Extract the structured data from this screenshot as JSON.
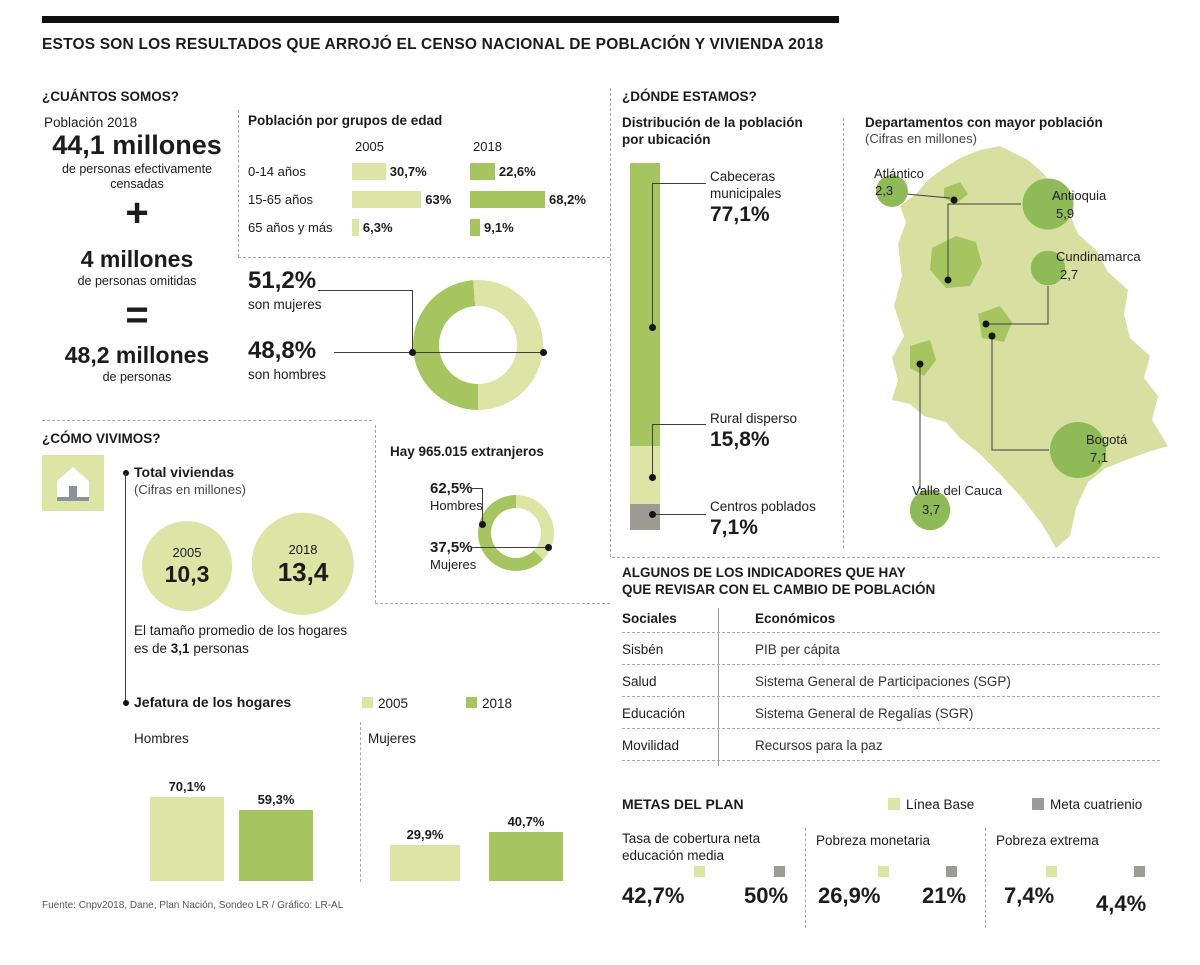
{
  "colors": {
    "light_green": "#dce4a6",
    "medium_green": "#a6c561",
    "bubble_green": "#8fba58",
    "map_green": "#d7e0a0",
    "gray": "#9c9c94",
    "ink": "#1c1c1c"
  },
  "header": {
    "title": "ESTOS SON LOS RESULTADOS QUE ARROJÓ EL CENSO NACIONAL DE POBLACIÓN Y VIVIENDA 2018"
  },
  "cuantos": {
    "section_title": "¿CUÁNTOS SOMOS?",
    "poblacion_label": "Población 2018",
    "censados_value": "44,1 millones",
    "censados_caption": "de personas efectivamente censadas",
    "plus": "+",
    "omitidas_value": "4 millones",
    "omitidas_caption": "de personas omitidas",
    "equals": "=",
    "total_value": "48,2 millones",
    "total_caption": "de personas"
  },
  "edad": {
    "title": "Población por grupos de edad",
    "col_2005": "2005",
    "col_2018": "2018",
    "rows": [
      {
        "label": "0-14 años",
        "v2005": "30,7%",
        "v2018": "22,6%"
      },
      {
        "label": "15-65 años",
        "v2005": "63%",
        "v2018": "68,2%"
      },
      {
        "label": "65 años y más",
        "v2005": "6,3%",
        "v2018": "9,1%"
      }
    ]
  },
  "sexo": {
    "mujeres_value": "51,2%",
    "mujeres_label": "son mujeres",
    "hombres_value": "48,8%",
    "hombres_label": "son hombres"
  },
  "extranjeros": {
    "title": "Hay 965.015 extranjeros",
    "hombres_value": "62,5%",
    "hombres_label": "Hombres",
    "mujeres_value": "37,5%",
    "mujeres_label": "Mujeres"
  },
  "vivimos": {
    "section_title": "¿CÓMO VIVIMOS?",
    "viviendas_title": "Total viviendas",
    "viviendas_caption": "(Cifras en millones)",
    "c2005_year": "2005",
    "c2005_value": "10,3",
    "c2018_year": "2018",
    "c2018_value": "13,4",
    "hogares_line1": "El tamaño promedio de los hogares",
    "hogares_pre": "es de ",
    "hogares_bold": "3,1",
    "hogares_post": " personas",
    "jefatura_title": "Jefatura de los hogares",
    "legend_2005": "2005",
    "legend_2018": "2018",
    "hombres_label": "Hombres",
    "mujeres_label": "Mujeres",
    "bars": {
      "h2005": "70,1%",
      "h2018": "59,3%",
      "m2005": "29,9%",
      "m2018": "40,7%"
    }
  },
  "fuente": "Fuente: Cnpv2018, Dane, Plan Nación, Sondeo LR / Gráfico: LR-AL",
  "donde": {
    "section_title": "¿DÓNDE ESTAMOS?",
    "dist_title": "Distribución de la población por ubicación",
    "items": [
      {
        "label": "Cabeceras municipales",
        "value": "77,1%"
      },
      {
        "label": "Rural disperso",
        "value": "15,8%"
      },
      {
        "label": "Centros poblados",
        "value": "7,1%"
      }
    ],
    "map_title": "Departamentos con mayor población",
    "map_subtitle": "(Cifras en millones)",
    "departamentos": [
      {
        "name": "Atlántico",
        "value": "2,3"
      },
      {
        "name": "Antioquia",
        "value": "5,9"
      },
      {
        "name": "Cundinamarca",
        "value": "2,7"
      },
      {
        "name": "Bogotá",
        "value": "7,1"
      },
      {
        "name": "Valle del Cauca",
        "value": "3,7"
      }
    ]
  },
  "indicadores": {
    "title_l1": "ALGUNOS DE LOS INDICADORES QUE HAY",
    "title_l2": "QUE REVISAR CON EL CAMBIO DE POBLACIÓN",
    "col1": "Sociales",
    "col2": "Económicos",
    "rows": [
      {
        "social": "Sisbén",
        "economico": "PIB per cápita"
      },
      {
        "social": "Salud",
        "economico": "Sistema General de Participaciones (SGP)"
      },
      {
        "social": "Educación",
        "economico": "Sistema General de Regalías (SGR)"
      },
      {
        "social": "Movilidad",
        "economico": "Recursos para la paz"
      }
    ]
  },
  "metas": {
    "title": "METAS DEL PLAN",
    "legend_base": "Línea Base",
    "legend_meta": "Meta cuatrienio",
    "groups": [
      {
        "label": "Tasa de cobertura neta educación media",
        "base": "42,7%",
        "meta": "50%"
      },
      {
        "label": "Pobreza monetaria",
        "base": "26,9%",
        "meta": "21%"
      },
      {
        "label": "Pobreza extrema",
        "base": "7,4%",
        "meta": "4,4%"
      }
    ]
  },
  "chart_data": [
    {
      "type": "bar",
      "title": "Población por grupos de edad",
      "categories": [
        "0-14 años",
        "15-65 años",
        "65 años y más"
      ],
      "series": [
        {
          "name": "2005",
          "values": [
            30.7,
            63,
            6.3
          ]
        },
        {
          "name": "2018",
          "values": [
            22.6,
            68.2,
            9.1
          ]
        }
      ],
      "unit": "%"
    },
    {
      "type": "pie",
      "title": "Distribución por sexo",
      "labels": [
        "son mujeres",
        "son hombres"
      ],
      "values": [
        51.2,
        48.8
      ],
      "unit": "%"
    },
    {
      "type": "pie",
      "title": "Hay 965.015 extranjeros",
      "labels": [
        "Hombres",
        "Mujeres"
      ],
      "values": [
        62.5,
        37.5
      ],
      "unit": "%"
    },
    {
      "type": "bar",
      "title": "Total viviendas (Cifras en millones)",
      "categories": [
        "2005",
        "2018"
      ],
      "values": [
        10.3,
        13.4
      ]
    },
    {
      "type": "bar",
      "title": "Jefatura de los hogares",
      "categories": [
        "Hombres",
        "Mujeres"
      ],
      "series": [
        {
          "name": "2005",
          "values": [
            70.1,
            29.9
          ]
        },
        {
          "name": "2018",
          "values": [
            59.3,
            40.7
          ]
        }
      ],
      "unit": "%"
    },
    {
      "type": "bar",
      "title": "Distribución de la población por ubicación",
      "categories": [
        "Cabeceras municipales",
        "Rural disperso",
        "Centros poblados"
      ],
      "values": [
        77.1,
        15.8,
        7.1
      ],
      "unit": "%"
    },
    {
      "type": "scatter",
      "title": "Departamentos con mayor población (Cifras en millones)",
      "labels": [
        "Atlántico",
        "Antioquia",
        "Cundinamarca",
        "Bogotá",
        "Valle del Cauca"
      ],
      "values": [
        2.3,
        5.9,
        2.7,
        7.1,
        3.7
      ]
    },
    {
      "type": "bar",
      "title": "Metas del plan",
      "categories": [
        "Tasa de cobertura neta educación media",
        "Pobreza monetaria",
        "Pobreza extrema"
      ],
      "series": [
        {
          "name": "Línea Base",
          "values": [
            42.7,
            26.9,
            7.4
          ]
        },
        {
          "name": "Meta cuatrienio",
          "values": [
            50,
            21,
            4.4
          ]
        }
      ],
      "unit": "%"
    },
    {
      "type": "table",
      "title": "Población 2018 (millones)",
      "rows": [
        [
          "Personas efectivamente censadas",
          44.1
        ],
        [
          "Personas omitidas",
          4
        ],
        [
          "Total personas",
          48.2
        ],
        [
          "Extranjeros (personas)",
          965015
        ],
        [
          "Tamaño promedio del hogar (personas)",
          3.1
        ]
      ]
    }
  ]
}
